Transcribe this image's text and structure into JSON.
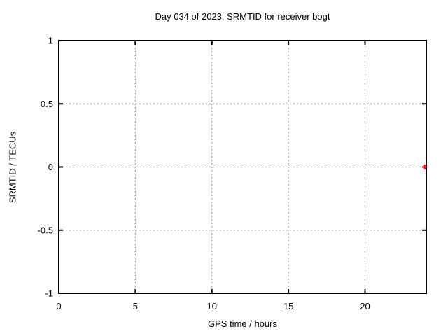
{
  "chart_data": {
    "type": "scatter",
    "title": "Day 034 of 2023, SRMTID for receiver bogt",
    "xlabel": "GPS time / hours",
    "ylabel": "SRMTID / TECUs",
    "xlim": [
      0,
      24
    ],
    "ylim": [
      -1,
      1
    ],
    "xticks": [
      0,
      5,
      10,
      15,
      20
    ],
    "xtick_labels": [
      "0",
      "5",
      "10",
      "15",
      "20"
    ],
    "yticks": [
      1,
      0.5,
      0,
      -0.5,
      -1
    ],
    "ytick_labels": [
      "1",
      "0.5",
      "0",
      "-0.5",
      "-1"
    ],
    "grid": true,
    "grid_style": "dashed",
    "legend_position": "none",
    "colors": {
      "background": "#ffffff",
      "border": "#000000",
      "grid": "#8a8a8a",
      "text": "#000000",
      "marker": "#ff0000"
    },
    "series": [
      {
        "name": "SRMTID",
        "marker": "plus",
        "color": "#ff0000",
        "points": [
          {
            "x": 23.9,
            "y": 0.0
          }
        ]
      }
    ]
  }
}
